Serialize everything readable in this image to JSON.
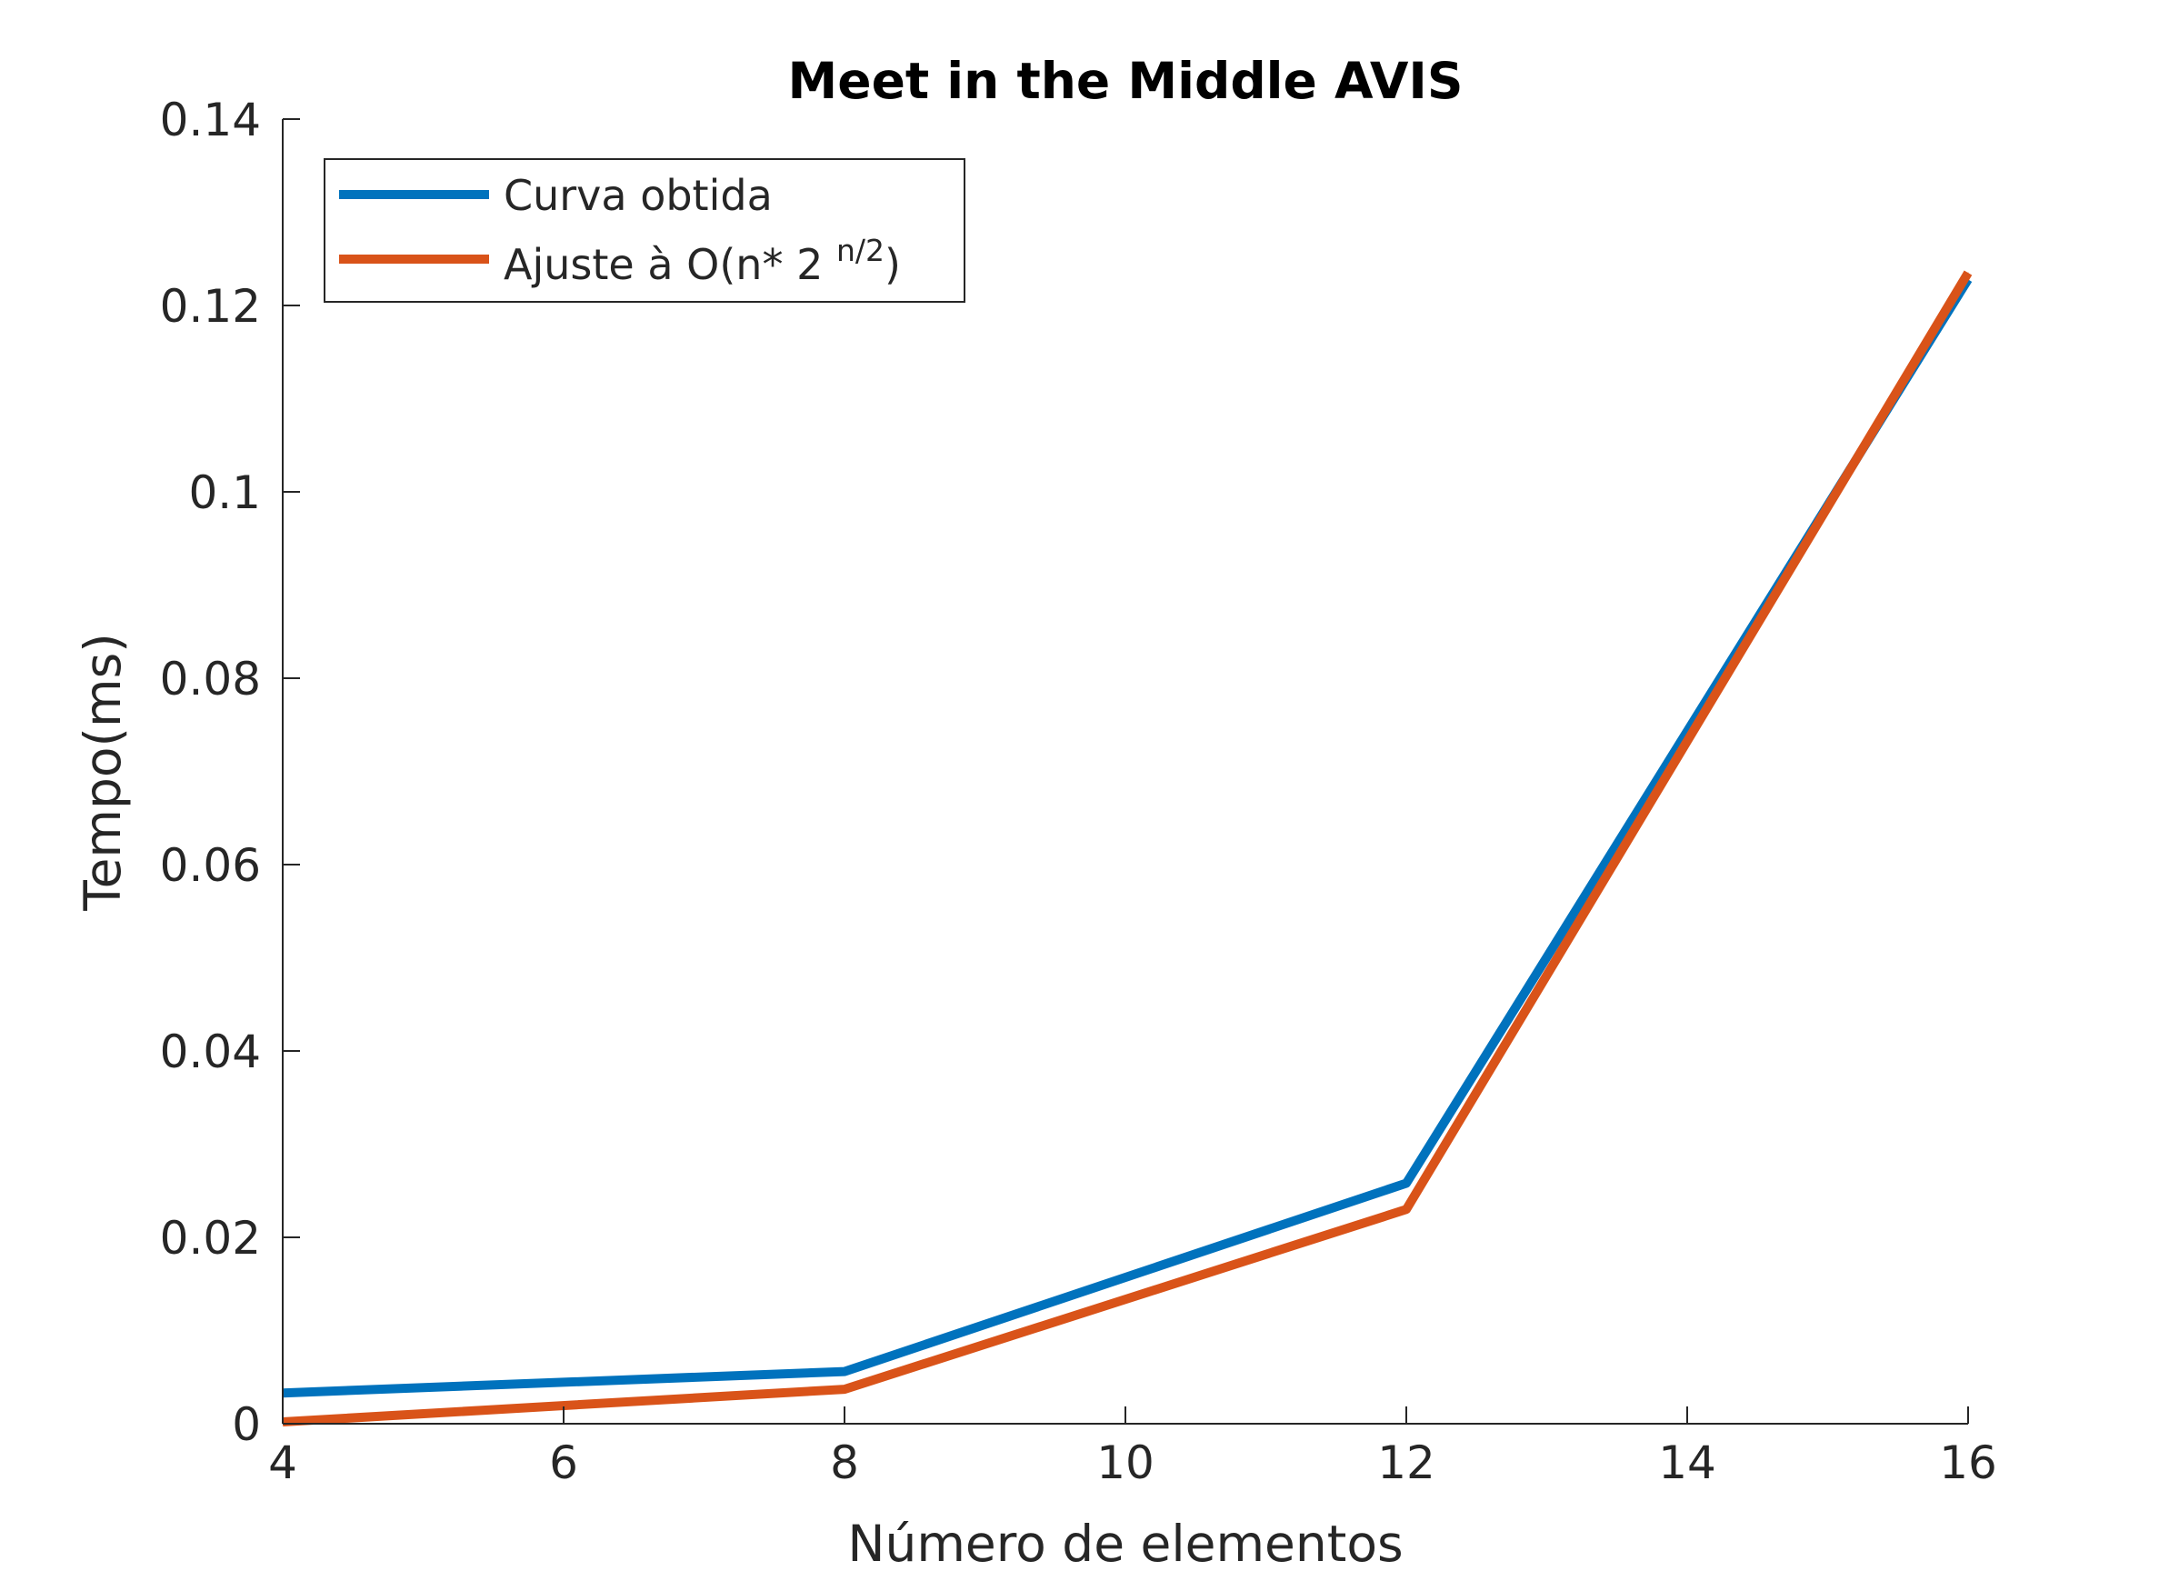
{
  "chart_data": {
    "type": "line",
    "title": "Meet in the Middle AVIS",
    "xlabel": "Número de elementos",
    "ylabel": "Tempo(ms)",
    "xlim": [
      4,
      16
    ],
    "ylim": [
      0,
      0.14
    ],
    "xticks": [
      4,
      6,
      8,
      10,
      12,
      14,
      16
    ],
    "xtick_labels": [
      "4",
      "6",
      "8",
      "10",
      "12",
      "14",
      "16"
    ],
    "yticks": [
      0,
      0.02,
      0.04,
      0.06,
      0.08,
      0.1,
      0.12,
      0.14
    ],
    "ytick_labels": [
      "0",
      "0.02",
      "0.04",
      "0.06",
      "0.08",
      "0.1",
      "0.12",
      "0.14"
    ],
    "grid": false,
    "legend_position": "top-left",
    "series": [
      {
        "name": "Curva obtida",
        "color": "#0072BD",
        "x": [
          4,
          8,
          12,
          16
        ],
        "y": [
          0.0033,
          0.0056,
          0.0258,
          0.1228
        ]
      },
      {
        "name": "Ajuste à O(n* 2 n/2)",
        "legend_main": "Ajuste à O(n* 2 ",
        "legend_sup": "n/2",
        "legend_end": ")",
        "color": "#D95319",
        "x": [
          4,
          8,
          12,
          16
        ],
        "y": [
          0.0002,
          0.0037,
          0.023,
          0.1235
        ]
      }
    ]
  }
}
